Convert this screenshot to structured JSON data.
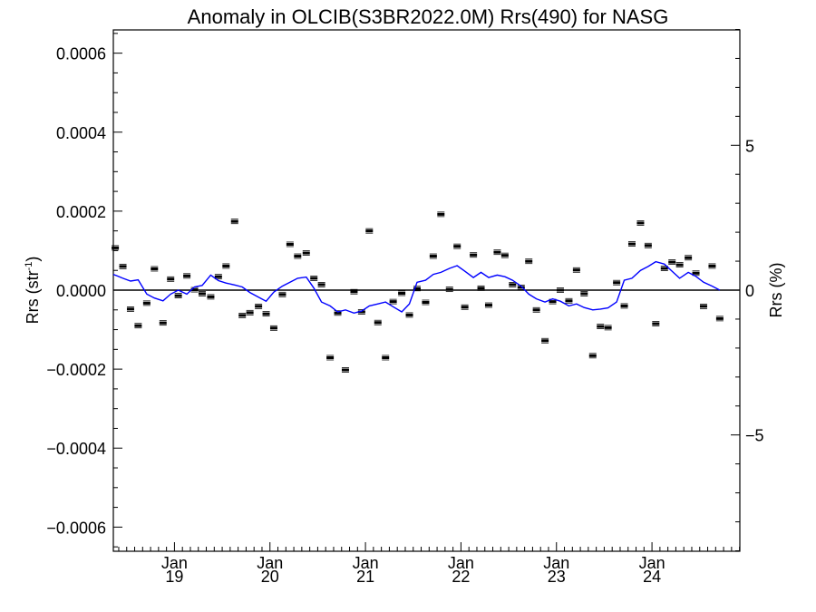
{
  "chart_data": {
    "type": "scatter",
    "title": "Anomaly in OLCIB(S3BR2022.0M) Rrs(490) for NASG",
    "ylabel_left": "Rrs (str",
    "ylabel_left_sup": "-1",
    "ylabel_left_close": ")",
    "ylabel_right": "Rrs (%)",
    "ylim_left": [
      -0.00066,
      0.00066
    ],
    "ylim_right": [
      -9,
      9
    ],
    "xlim": [
      2018.36,
      2024.92
    ],
    "left_ticks": [
      {
        "value": 0.0006,
        "label": "0.0006"
      },
      {
        "value": 0.0004,
        "label": "0.0004"
      },
      {
        "value": 0.0002,
        "label": "0.0002"
      },
      {
        "value": 0.0,
        "label": "0.0000"
      },
      {
        "value": -0.0002,
        "label": "−0.0002"
      },
      {
        "value": -0.0004,
        "label": "−0.0004"
      },
      {
        "value": -0.0006,
        "label": "−0.0006"
      }
    ],
    "right_ticks": [
      {
        "value": 5,
        "label": "5"
      },
      {
        "value": 0,
        "label": "0"
      },
      {
        "value": -5,
        "label": "−5"
      }
    ],
    "x_ticks": [
      {
        "value": 2019.0,
        "month": "Jan",
        "year": "19"
      },
      {
        "value": 2020.0,
        "month": "Jan",
        "year": "20"
      },
      {
        "value": 2021.0,
        "month": "Jan",
        "year": "21"
      },
      {
        "value": 2022.0,
        "month": "Jan",
        "year": "22"
      },
      {
        "value": 2023.0,
        "month": "Jan",
        "year": "23"
      },
      {
        "value": 2024.0,
        "month": "Jan",
        "year": "24"
      }
    ],
    "zero_line": true,
    "grid": false,
    "series": [
      {
        "kind": "points",
        "color": "#000000",
        "points": [
          [
            2018.38,
            0.000107
          ],
          [
            2018.46,
            6e-05
          ],
          [
            2018.54,
            -4.8e-05
          ],
          [
            2018.62,
            -9e-05
          ],
          [
            2018.71,
            -3.3e-05
          ],
          [
            2018.79,
            5.4e-05
          ],
          [
            2018.88,
            -8.3e-05
          ],
          [
            2018.96,
            2.8e-05
          ],
          [
            2019.04,
            -1.4e-05
          ],
          [
            2019.13,
            3.6e-05
          ],
          [
            2019.21,
            1e-06
          ],
          [
            2019.29,
            -9e-06
          ],
          [
            2019.38,
            -1.7e-05
          ],
          [
            2019.46,
            3.4e-05
          ],
          [
            2019.54,
            6.1e-05
          ],
          [
            2019.63,
            0.000174
          ],
          [
            2019.71,
            -6.4e-05
          ],
          [
            2019.79,
            -5.7e-05
          ],
          [
            2019.88,
            -4.1e-05
          ],
          [
            2019.96,
            -6e-05
          ],
          [
            2020.04,
            -9.6e-05
          ],
          [
            2020.13,
            -1.1e-05
          ],
          [
            2020.21,
            0.000116
          ],
          [
            2020.29,
            8.6e-05
          ],
          [
            2020.38,
            9.4e-05
          ],
          [
            2020.46,
            3e-05
          ],
          [
            2020.54,
            1.4e-05
          ],
          [
            2020.63,
            -0.000171
          ],
          [
            2020.71,
            -5.8e-05
          ],
          [
            2020.79,
            -0.000202
          ],
          [
            2020.88,
            -4e-06
          ],
          [
            2020.96,
            -5.5e-05
          ],
          [
            2021.04,
            0.00015
          ],
          [
            2021.13,
            -8.2e-05
          ],
          [
            2021.21,
            -0.000171
          ],
          [
            2021.29,
            -2.9e-05
          ],
          [
            2021.38,
            -8e-06
          ],
          [
            2021.46,
            -6.3e-05
          ],
          [
            2021.54,
            4e-06
          ],
          [
            2021.63,
            -3.1e-05
          ],
          [
            2021.71,
            8.6e-05
          ],
          [
            2021.79,
            0.000192
          ],
          [
            2021.88,
            2e-06
          ],
          [
            2021.96,
            0.000111
          ],
          [
            2022.04,
            -4.3e-05
          ],
          [
            2022.13,
            8.9e-05
          ],
          [
            2022.21,
            5e-06
          ],
          [
            2022.29,
            -3.8e-05
          ],
          [
            2022.38,
            9.6e-05
          ],
          [
            2022.46,
            8.8e-05
          ],
          [
            2022.54,
            1.4e-05
          ],
          [
            2022.63,
            7e-06
          ],
          [
            2022.71,
            7.3e-05
          ],
          [
            2022.79,
            -5e-05
          ],
          [
            2022.88,
            -0.000128
          ],
          [
            2022.96,
            -2.9e-05
          ],
          [
            2023.04,
            0.0
          ],
          [
            2023.13,
            -2.7e-05
          ],
          [
            2023.21,
            5.1e-05
          ],
          [
            2023.29,
            -9e-06
          ],
          [
            2023.38,
            -0.000166
          ],
          [
            2023.46,
            -9.2e-05
          ],
          [
            2023.54,
            -9.5e-05
          ],
          [
            2023.63,
            1.9e-05
          ],
          [
            2023.71,
            -4e-05
          ],
          [
            2023.79,
            0.000117
          ],
          [
            2023.88,
            0.00017
          ],
          [
            2023.96,
            0.000113
          ],
          [
            2024.04,
            -8.5e-05
          ],
          [
            2024.13,
            5.5e-05
          ],
          [
            2024.21,
            7.1e-05
          ],
          [
            2024.29,
            6.4e-05
          ],
          [
            2024.38,
            8.2e-05
          ],
          [
            2024.46,
            4.3e-05
          ],
          [
            2024.54,
            -4.1e-05
          ],
          [
            2024.63,
            6.1e-05
          ],
          [
            2024.71,
            -7.2e-05
          ]
        ]
      },
      {
        "kind": "line",
        "color": "#0000ff",
        "points": [
          [
            2018.36,
            4e-05
          ],
          [
            2018.46,
            3e-05
          ],
          [
            2018.54,
            2.3e-05
          ],
          [
            2018.62,
            2.6e-05
          ],
          [
            2018.71,
            -1e-05
          ],
          [
            2018.79,
            -2e-05
          ],
          [
            2018.88,
            -2.7e-05
          ],
          [
            2018.96,
            -1e-05
          ],
          [
            2019.04,
            0.0
          ],
          [
            2019.13,
            -1e-05
          ],
          [
            2019.21,
            8e-06
          ],
          [
            2019.29,
            1.2e-05
          ],
          [
            2019.38,
            3.8e-05
          ],
          [
            2019.46,
            2.4e-05
          ],
          [
            2019.54,
            1.8e-05
          ],
          [
            2019.63,
            1.3e-05
          ],
          [
            2019.71,
            8e-06
          ],
          [
            2019.79,
            -6e-06
          ],
          [
            2019.88,
            -1.8e-05
          ],
          [
            2019.96,
            -2.8e-05
          ],
          [
            2020.04,
            -5e-06
          ],
          [
            2020.13,
            1e-05
          ],
          [
            2020.21,
            2e-05
          ],
          [
            2020.29,
            3e-05
          ],
          [
            2020.38,
            3.3e-05
          ],
          [
            2020.46,
            5e-06
          ],
          [
            2020.54,
            -3e-05
          ],
          [
            2020.63,
            -4e-05
          ],
          [
            2020.71,
            -5.5e-05
          ],
          [
            2020.79,
            -5e-05
          ],
          [
            2020.88,
            -5.8e-05
          ],
          [
            2020.96,
            -5.3e-05
          ],
          [
            2021.04,
            -4e-05
          ],
          [
            2021.13,
            -3.5e-05
          ],
          [
            2021.21,
            -3e-05
          ],
          [
            2021.29,
            -4.2e-05
          ],
          [
            2021.38,
            -5.5e-05
          ],
          [
            2021.46,
            -3.5e-05
          ],
          [
            2021.54,
            2e-05
          ],
          [
            2021.63,
            2.5e-05
          ],
          [
            2021.71,
            4e-05
          ],
          [
            2021.79,
            4.5e-05
          ],
          [
            2021.88,
            5.5e-05
          ],
          [
            2021.96,
            6.2e-05
          ],
          [
            2022.04,
            4.8e-05
          ],
          [
            2022.13,
            3.2e-05
          ],
          [
            2022.21,
            4.5e-05
          ],
          [
            2022.29,
            3.2e-05
          ],
          [
            2022.38,
            3.8e-05
          ],
          [
            2022.46,
            3.4e-05
          ],
          [
            2022.54,
            2.5e-05
          ],
          [
            2022.63,
            1e-05
          ],
          [
            2022.71,
            -1e-05
          ],
          [
            2022.79,
            -2.2e-05
          ],
          [
            2022.88,
            -3e-05
          ],
          [
            2022.96,
            -2.2e-05
          ],
          [
            2023.04,
            -2.8e-05
          ],
          [
            2023.13,
            -4e-05
          ],
          [
            2023.21,
            -3.5e-05
          ],
          [
            2023.29,
            -4.4e-05
          ],
          [
            2023.38,
            -5e-05
          ],
          [
            2023.46,
            -4.8e-05
          ],
          [
            2023.54,
            -4.5e-05
          ],
          [
            2023.63,
            -3e-05
          ],
          [
            2023.71,
            2.5e-05
          ],
          [
            2023.79,
            3e-05
          ],
          [
            2023.88,
            5e-05
          ],
          [
            2023.96,
            6e-05
          ],
          [
            2024.04,
            7.2e-05
          ],
          [
            2024.13,
            6.6e-05
          ],
          [
            2024.21,
            4.8e-05
          ],
          [
            2024.29,
            3e-05
          ],
          [
            2024.38,
            4.5e-05
          ],
          [
            2024.46,
            3.5e-05
          ],
          [
            2024.54,
            2e-05
          ],
          [
            2024.63,
            1e-05
          ],
          [
            2024.71,
            0.0
          ]
        ]
      }
    ]
  }
}
